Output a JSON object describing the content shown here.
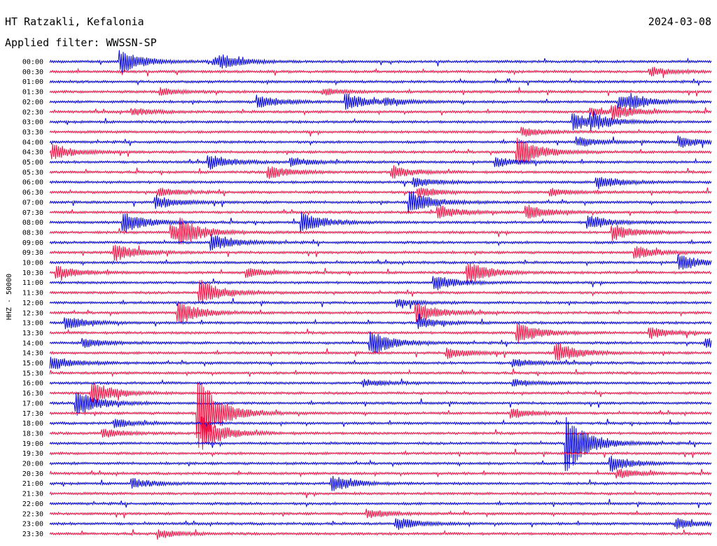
{
  "header": {
    "station": "HT Ratzakli, Kefalonia",
    "date": "2024-03-08",
    "filter": "Applied filter: WWSSN-SP"
  },
  "chart_data": {
    "type": "line",
    "ylabel": "HHZ - 50000",
    "xlabel": "",
    "title": "",
    "colors": [
      "#0000dd",
      "#ee1144"
    ],
    "rows": [
      "00:00",
      "00:30",
      "01:00",
      "01:30",
      "02:00",
      "02:30",
      "03:00",
      "03:30",
      "04:00",
      "04:30",
      "05:00",
      "05:30",
      "06:00",
      "06:30",
      "07:00",
      "07:30",
      "08:00",
      "08:30",
      "09:00",
      "09:30",
      "10:00",
      "10:30",
      "11:00",
      "11:30",
      "12:00",
      "12:30",
      "13:00",
      "13:30",
      "14:00",
      "14:30",
      "15:00",
      "15:30",
      "16:00",
      "16:30",
      "17:00",
      "17:30",
      "18:00",
      "18:30",
      "19:00",
      "19:30",
      "20:00",
      "20:30",
      "21:00",
      "21:30",
      "22:00",
      "22:30",
      "23:00",
      "23:30"
    ],
    "events": [
      {
        "row": 0,
        "minute": 3.3,
        "amp": 1.9
      },
      {
        "row": 0,
        "minute": 7.5,
        "amp": 0.6
      },
      {
        "row": 0,
        "minute": 7.8,
        "amp": 0.8
      },
      {
        "row": 1,
        "minute": 27.3,
        "amp": 0.7
      },
      {
        "row": 3,
        "minute": 5.1,
        "amp": 0.6
      },
      {
        "row": 3,
        "minute": 12.5,
        "amp": 0.5
      },
      {
        "row": 4,
        "minute": 9.5,
        "amp": 1.1
      },
      {
        "row": 4,
        "minute": 13.5,
        "amp": 1.4
      },
      {
        "row": 4,
        "minute": 15.3,
        "amp": 0.5
      },
      {
        "row": 4,
        "minute": 25.9,
        "amp": 1.2
      },
      {
        "row": 4,
        "minute": 26.4,
        "amp": 0.7
      },
      {
        "row": 5,
        "minute": 3.8,
        "amp": 0.6
      },
      {
        "row": 5,
        "minute": 24.6,
        "amp": 0.7
      },
      {
        "row": 5,
        "minute": 25.6,
        "amp": 1.1
      },
      {
        "row": 6,
        "minute": 23.8,
        "amp": 1.4
      },
      {
        "row": 6,
        "minute": 24.6,
        "amp": 1.0
      },
      {
        "row": 7,
        "minute": 21.5,
        "amp": 0.7
      },
      {
        "row": 8,
        "minute": 28.6,
        "amp": 1.0
      },
      {
        "row": 8,
        "minute": 24.0,
        "amp": 0.8
      },
      {
        "row": 9,
        "minute": 0.2,
        "amp": 1.3
      },
      {
        "row": 9,
        "minute": 21.3,
        "amp": 2.6
      },
      {
        "row": 10,
        "minute": 7.3,
        "amp": 1.2
      },
      {
        "row": 10,
        "minute": 20.3,
        "amp": 0.8
      },
      {
        "row": 10,
        "minute": 11.0,
        "amp": 0.7
      },
      {
        "row": 11,
        "minute": 10.0,
        "amp": 1.1
      },
      {
        "row": 11,
        "minute": 15.6,
        "amp": 1.0
      },
      {
        "row": 12,
        "minute": 24.9,
        "amp": 1.1
      },
      {
        "row": 12,
        "minute": 16.6,
        "amp": 0.8
      },
      {
        "row": 13,
        "minute": 5.0,
        "amp": 0.7
      },
      {
        "row": 13,
        "minute": 16.8,
        "amp": 0.8
      },
      {
        "row": 13,
        "minute": 22.8,
        "amp": 0.6
      },
      {
        "row": 14,
        "minute": 4.9,
        "amp": 1.1
      },
      {
        "row": 14,
        "minute": 16.4,
        "amp": 2.0
      },
      {
        "row": 15,
        "minute": 17.7,
        "amp": 1.1
      },
      {
        "row": 15,
        "minute": 21.7,
        "amp": 1.2
      },
      {
        "row": 16,
        "minute": 3.4,
        "amp": 1.9
      },
      {
        "row": 16,
        "minute": 11.5,
        "amp": 1.8
      },
      {
        "row": 16,
        "minute": 24.5,
        "amp": 1.2
      },
      {
        "row": 17,
        "minute": 5.6,
        "amp": 1.3
      },
      {
        "row": 17,
        "minute": 6.0,
        "amp": 1.7
      },
      {
        "row": 17,
        "minute": 25.6,
        "amp": 1.3
      },
      {
        "row": 18,
        "minute": 7.4,
        "amp": 1.5
      },
      {
        "row": 19,
        "minute": 3.0,
        "amp": 1.5
      },
      {
        "row": 19,
        "minute": 26.6,
        "amp": 1.1
      },
      {
        "row": 20,
        "minute": 28.6,
        "amp": 1.4
      },
      {
        "row": 21,
        "minute": 0.4,
        "amp": 1.1
      },
      {
        "row": 21,
        "minute": 9.0,
        "amp": 0.8
      },
      {
        "row": 21,
        "minute": 19.0,
        "amp": 2.0
      },
      {
        "row": 22,
        "minute": 17.5,
        "amp": 1.3
      },
      {
        "row": 23,
        "minute": 6.9,
        "amp": 2.2
      },
      {
        "row": 24,
        "minute": 15.8,
        "amp": 0.6
      },
      {
        "row": 25,
        "minute": 5.9,
        "amp": 2.0
      },
      {
        "row": 25,
        "minute": 16.7,
        "amp": 1.8
      },
      {
        "row": 26,
        "minute": 0.8,
        "amp": 1.1
      },
      {
        "row": 26,
        "minute": 16.8,
        "amp": 0.9
      },
      {
        "row": 27,
        "minute": 21.3,
        "amp": 1.8
      },
      {
        "row": 27,
        "minute": 27.3,
        "amp": 0.9
      },
      {
        "row": 28,
        "minute": 1.6,
        "amp": 0.8
      },
      {
        "row": 28,
        "minute": 14.6,
        "amp": 2.2
      },
      {
        "row": 28,
        "minute": 29.8,
        "amp": 0.8
      },
      {
        "row": 29,
        "minute": 23.0,
        "amp": 1.9
      },
      {
        "row": 29,
        "minute": 18.1,
        "amp": 0.9
      },
      {
        "row": 30,
        "minute": 0.1,
        "amp": 1.2
      },
      {
        "row": 30,
        "minute": 21.1,
        "amp": 0.7
      },
      {
        "row": 32,
        "minute": 14.3,
        "amp": 0.6
      },
      {
        "row": 32,
        "minute": 21.1,
        "amp": 0.6
      },
      {
        "row": 33,
        "minute": 2.0,
        "amp": 2.0
      },
      {
        "row": 34,
        "minute": 1.3,
        "amp": 2.4
      },
      {
        "row": 35,
        "minute": 6.8,
        "amp": 6.5
      },
      {
        "row": 35,
        "minute": 21.0,
        "amp": 0.8
      },
      {
        "row": 36,
        "minute": 3.0,
        "amp": 0.7
      },
      {
        "row": 37,
        "minute": 7.0,
        "amp": 2.8
      },
      {
        "row": 37,
        "minute": 2.5,
        "amp": 0.7
      },
      {
        "row": 38,
        "minute": 23.5,
        "amp": 5.0
      },
      {
        "row": 40,
        "minute": 25.5,
        "amp": 1.3
      },
      {
        "row": 41,
        "minute": 25.8,
        "amp": 0.8
      },
      {
        "row": 42,
        "minute": 3.8,
        "amp": 0.8
      },
      {
        "row": 42,
        "minute": 12.9,
        "amp": 1.3
      },
      {
        "row": 45,
        "minute": 14.5,
        "amp": 0.7
      },
      {
        "row": 46,
        "minute": 15.8,
        "amp": 1.0
      },
      {
        "row": 46,
        "minute": 28.5,
        "amp": 0.9
      },
      {
        "row": 47,
        "minute": 5.0,
        "amp": 0.7
      }
    ]
  }
}
